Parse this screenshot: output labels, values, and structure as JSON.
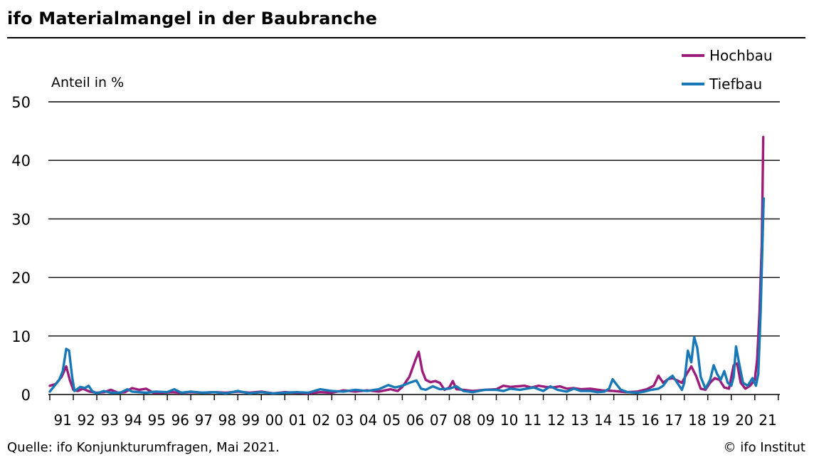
{
  "title": "ifo Materialmangel in der Baubranche",
  "source": "Quelle: ifo Konjunkturumfragen, Mai 2021.",
  "copyright": "© ifo Institut",
  "colors": {
    "Hochbau": "#9b1c7a",
    "Tiefbau": "#1878b6"
  },
  "chart_data": {
    "type": "line",
    "ylabel": "Anteil in %",
    "ylim": [
      0,
      50
    ],
    "yticks": [
      0,
      10,
      20,
      30,
      40,
      50
    ],
    "grid": true,
    "legend": "top-right",
    "x_start": 1991.0,
    "x_end": 2021.4,
    "xtick_labels": [
      "91",
      "92",
      "93",
      "94",
      "95",
      "96",
      "97",
      "98",
      "99",
      "00",
      "01",
      "02",
      "03",
      "04",
      "05",
      "06",
      "07",
      "08",
      "09",
      "10",
      "11",
      "12",
      "13",
      "14",
      "15",
      "16",
      "17",
      "18",
      "19",
      "20",
      "21"
    ],
    "series": [
      {
        "name": "Hochbau",
        "points": [
          [
            1991.0,
            1.5
          ],
          [
            1991.25,
            1.8
          ],
          [
            1991.5,
            3.0
          ],
          [
            1991.7,
            4.8
          ],
          [
            1991.85,
            2.5
          ],
          [
            1992.0,
            0.8
          ],
          [
            1992.2,
            0.6
          ],
          [
            1992.4,
            1.0
          ],
          [
            1992.7,
            0.5
          ],
          [
            1993.0,
            0.3
          ],
          [
            1993.3,
            0.4
          ],
          [
            1993.6,
            0.8
          ],
          [
            1993.9,
            0.3
          ],
          [
            1994.2,
            0.4
          ],
          [
            1994.5,
            1.1
          ],
          [
            1994.8,
            0.8
          ],
          [
            1995.1,
            1.0
          ],
          [
            1995.4,
            0.3
          ],
          [
            1995.8,
            0.3
          ],
          [
            1996.2,
            0.4
          ],
          [
            1996.6,
            0.3
          ],
          [
            1997.0,
            0.4
          ],
          [
            1997.5,
            0.3
          ],
          [
            1998.0,
            0.4
          ],
          [
            1998.5,
            0.3
          ],
          [
            1999.0,
            0.5
          ],
          [
            1999.5,
            0.3
          ],
          [
            2000.0,
            0.5
          ],
          [
            2000.5,
            0.2
          ],
          [
            2001.0,
            0.4
          ],
          [
            2001.5,
            0.3
          ],
          [
            2002.0,
            0.2
          ],
          [
            2002.5,
            0.4
          ],
          [
            2003.0,
            0.3
          ],
          [
            2003.5,
            0.7
          ],
          [
            2004.0,
            0.5
          ],
          [
            2004.5,
            0.7
          ],
          [
            2005.0,
            0.5
          ],
          [
            2005.5,
            0.9
          ],
          [
            2005.8,
            0.6
          ],
          [
            2006.0,
            1.3
          ],
          [
            2006.3,
            3.0
          ],
          [
            2006.55,
            5.8
          ],
          [
            2006.7,
            7.3
          ],
          [
            2006.85,
            4.0
          ],
          [
            2007.0,
            2.5
          ],
          [
            2007.2,
            2.1
          ],
          [
            2007.4,
            2.3
          ],
          [
            2007.6,
            2.0
          ],
          [
            2007.8,
            0.8
          ],
          [
            2008.0,
            1.2
          ],
          [
            2008.15,
            2.3
          ],
          [
            2008.3,
            0.9
          ],
          [
            2008.6,
            0.8
          ],
          [
            2009.0,
            0.6
          ],
          [
            2009.5,
            0.8
          ],
          [
            2010.0,
            0.9
          ],
          [
            2010.3,
            1.5
          ],
          [
            2010.6,
            1.3
          ],
          [
            2010.9,
            1.4
          ],
          [
            2011.2,
            1.5
          ],
          [
            2011.5,
            1.2
          ],
          [
            2011.8,
            1.5
          ],
          [
            2012.1,
            1.3
          ],
          [
            2012.4,
            1.2
          ],
          [
            2012.7,
            1.4
          ],
          [
            2013.0,
            1.0
          ],
          [
            2013.3,
            1.1
          ],
          [
            2013.6,
            0.9
          ],
          [
            2014.0,
            1.0
          ],
          [
            2014.5,
            0.7
          ],
          [
            2015.0,
            0.6
          ],
          [
            2015.5,
            0.4
          ],
          [
            2016.0,
            0.5
          ],
          [
            2016.4,
            0.9
          ],
          [
            2016.7,
            1.5
          ],
          [
            2016.9,
            3.2
          ],
          [
            2017.1,
            2.0
          ],
          [
            2017.3,
            2.6
          ],
          [
            2017.5,
            2.8
          ],
          [
            2017.7,
            2.4
          ],
          [
            2017.9,
            2.0
          ],
          [
            2018.1,
            3.5
          ],
          [
            2018.3,
            4.8
          ],
          [
            2018.5,
            3.2
          ],
          [
            2018.7,
            1.0
          ],
          [
            2018.9,
            0.8
          ],
          [
            2019.1,
            2.0
          ],
          [
            2019.3,
            2.8
          ],
          [
            2019.5,
            2.5
          ],
          [
            2019.7,
            1.2
          ],
          [
            2019.9,
            1.0
          ],
          [
            2020.1,
            5.0
          ],
          [
            2020.25,
            5.3
          ],
          [
            2020.4,
            2.0
          ],
          [
            2020.6,
            1.0
          ],
          [
            2020.8,
            1.5
          ],
          [
            2021.0,
            2.5
          ],
          [
            2021.1,
            6.0
          ],
          [
            2021.2,
            14.0
          ],
          [
            2021.3,
            26.0
          ],
          [
            2021.36,
            44.0
          ]
        ]
      },
      {
        "name": "Tiefbau",
        "points": [
          [
            1991.0,
            0.5
          ],
          [
            1991.2,
            1.5
          ],
          [
            1991.4,
            2.5
          ],
          [
            1991.55,
            4.0
          ],
          [
            1991.7,
            7.8
          ],
          [
            1991.82,
            7.5
          ],
          [
            1991.95,
            3.0
          ],
          [
            1992.05,
            0.6
          ],
          [
            1992.3,
            1.3
          ],
          [
            1992.5,
            1.1
          ],
          [
            1992.65,
            1.5
          ],
          [
            1992.8,
            0.6
          ],
          [
            1993.0,
            0.2
          ],
          [
            1993.3,
            0.6
          ],
          [
            1993.6,
            0.3
          ],
          [
            1994.0,
            0.3
          ],
          [
            1994.3,
            0.9
          ],
          [
            1994.5,
            0.5
          ],
          [
            1994.8,
            0.4
          ],
          [
            1995.1,
            0.3
          ],
          [
            1995.5,
            0.5
          ],
          [
            1996.0,
            0.4
          ],
          [
            1996.3,
            0.9
          ],
          [
            1996.6,
            0.3
          ],
          [
            1997.0,
            0.5
          ],
          [
            1997.5,
            0.3
          ],
          [
            1998.0,
            0.4
          ],
          [
            1998.5,
            0.2
          ],
          [
            1999.0,
            0.6
          ],
          [
            1999.5,
            0.2
          ],
          [
            2000.0,
            0.4
          ],
          [
            2000.5,
            0.2
          ],
          [
            2001.0,
            0.3
          ],
          [
            2001.5,
            0.4
          ],
          [
            2002.0,
            0.3
          ],
          [
            2002.5,
            0.9
          ],
          [
            2003.0,
            0.6
          ],
          [
            2003.5,
            0.5
          ],
          [
            2004.0,
            0.8
          ],
          [
            2004.5,
            0.6
          ],
          [
            2005.0,
            0.9
          ],
          [
            2005.4,
            1.6
          ],
          [
            2005.7,
            1.2
          ],
          [
            2006.0,
            1.5
          ],
          [
            2006.3,
            2.0
          ],
          [
            2006.6,
            2.4
          ],
          [
            2006.8,
            1.0
          ],
          [
            2007.0,
            0.8
          ],
          [
            2007.3,
            1.4
          ],
          [
            2007.6,
            0.9
          ],
          [
            2008.0,
            1.0
          ],
          [
            2008.3,
            1.4
          ],
          [
            2008.6,
            0.6
          ],
          [
            2009.0,
            0.4
          ],
          [
            2009.5,
            0.8
          ],
          [
            2010.0,
            0.8
          ],
          [
            2010.3,
            0.6
          ],
          [
            2010.6,
            1.0
          ],
          [
            2011.0,
            0.8
          ],
          [
            2011.3,
            1.0
          ],
          [
            2011.6,
            1.2
          ],
          [
            2012.0,
            0.6
          ],
          [
            2012.3,
            1.4
          ],
          [
            2012.6,
            0.8
          ],
          [
            2013.0,
            0.5
          ],
          [
            2013.3,
            1.0
          ],
          [
            2013.6,
            0.6
          ],
          [
            2014.0,
            0.6
          ],
          [
            2014.3,
            0.4
          ],
          [
            2014.6,
            0.5
          ],
          [
            2014.8,
            1.0
          ],
          [
            2014.95,
            2.6
          ],
          [
            2015.1,
            1.8
          ],
          [
            2015.3,
            0.8
          ],
          [
            2015.6,
            0.4
          ],
          [
            2016.0,
            0.3
          ],
          [
            2016.3,
            0.5
          ],
          [
            2016.6,
            0.8
          ],
          [
            2016.9,
            1.0
          ],
          [
            2017.1,
            1.5
          ],
          [
            2017.3,
            2.6
          ],
          [
            2017.5,
            3.2
          ],
          [
            2017.7,
            2.0
          ],
          [
            2017.9,
            0.8
          ],
          [
            2018.0,
            2.0
          ],
          [
            2018.15,
            7.5
          ],
          [
            2018.3,
            5.5
          ],
          [
            2018.42,
            9.8
          ],
          [
            2018.55,
            8.0
          ],
          [
            2018.7,
            3.0
          ],
          [
            2018.9,
            1.0
          ],
          [
            2019.1,
            2.5
          ],
          [
            2019.25,
            5.0
          ],
          [
            2019.4,
            3.5
          ],
          [
            2019.55,
            2.5
          ],
          [
            2019.7,
            4.0
          ],
          [
            2019.85,
            2.0
          ],
          [
            2020.0,
            1.5
          ],
          [
            2020.1,
            3.0
          ],
          [
            2020.2,
            8.2
          ],
          [
            2020.35,
            5.0
          ],
          [
            2020.5,
            2.0
          ],
          [
            2020.7,
            1.5
          ],
          [
            2020.9,
            2.8
          ],
          [
            2021.05,
            1.5
          ],
          [
            2021.15,
            3.5
          ],
          [
            2021.25,
            14.0
          ],
          [
            2021.32,
            25.0
          ],
          [
            2021.38,
            33.5
          ]
        ]
      }
    ]
  }
}
